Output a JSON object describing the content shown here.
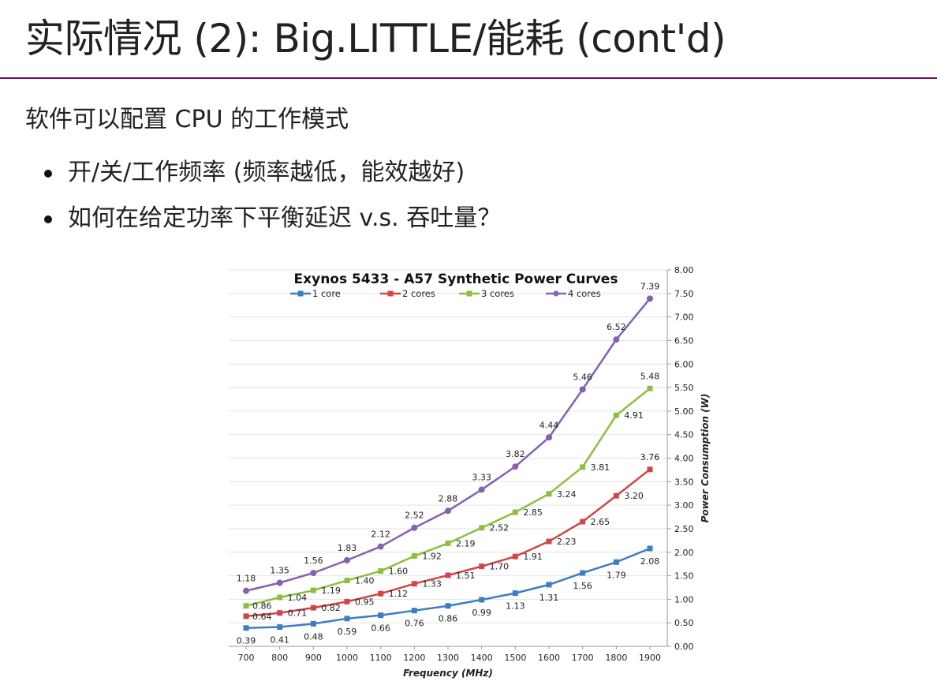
{
  "slide": {
    "title": "实际情况 (2): Big.LITTLE/能耗 (cont'd)",
    "lead": "软件可以配置 CPU 的工作模式",
    "bullets": [
      "开/关/工作频率 (频率越低，能效越好)",
      "如何在给定功率下平衡延迟 v.s. 吞吐量？"
    ]
  },
  "chart_data": {
    "type": "line",
    "title": "Exynos 5433 - A57 Synthetic Power Curves",
    "xlabel": "Frequency (MHz)",
    "ylabel": "Power Consumption (W)",
    "x": [
      700,
      800,
      900,
      1000,
      1100,
      1200,
      1300,
      1400,
      1500,
      1600,
      1700,
      1800,
      1900
    ],
    "ylim": [
      0,
      8
    ],
    "yticks": [
      "0.00",
      "0.50",
      "1.00",
      "1.50",
      "2.00",
      "2.50",
      "3.00",
      "3.50",
      "4.00",
      "4.50",
      "5.00",
      "5.50",
      "6.00",
      "6.50",
      "7.00",
      "7.50",
      "8.00"
    ],
    "y_axis_side": "right",
    "grid": true,
    "legend": "top",
    "series": [
      {
        "name": "1 core",
        "color": "#3c7dc3",
        "marker": "square",
        "values": [
          0.39,
          0.41,
          0.48,
          0.59,
          0.66,
          0.76,
          0.86,
          0.99,
          1.13,
          1.31,
          1.56,
          1.79,
          2.08
        ],
        "labels": [
          "0.39",
          "0.41",
          "0.48",
          "0.59",
          "0.66",
          "0.76",
          "0.86",
          "0.99",
          "1.13",
          "1.31",
          "1.56",
          "1.79",
          "2.08"
        ]
      },
      {
        "name": "2 cores",
        "color": "#d04545",
        "marker": "square",
        "values": [
          0.64,
          0.71,
          0.82,
          0.95,
          1.12,
          1.33,
          1.51,
          1.7,
          1.91,
          2.23,
          2.65,
          3.2,
          3.76
        ],
        "labels": [
          "0.64",
          "0.71",
          "0.82",
          "0.95",
          "1.12",
          "1.33",
          "1.51",
          "1.70",
          "1.91",
          "2.23",
          "2.65",
          "3.20",
          "3.76"
        ]
      },
      {
        "name": "3 cores",
        "color": "#8cbf3f",
        "marker": "square",
        "values": [
          0.86,
          1.04,
          1.19,
          1.4,
          1.6,
          1.92,
          2.19,
          2.52,
          2.85,
          3.24,
          3.81,
          4.91,
          5.48
        ],
        "labels": [
          "0.86",
          "1.04",
          "1.19",
          "1.40",
          "1.60",
          "1.92",
          "2.19",
          "2.52",
          "2.85",
          "3.24",
          "3.81",
          "4.91",
          "5.48"
        ]
      },
      {
        "name": "4 cores",
        "color": "#8760b0",
        "marker": "circle",
        "values": [
          1.18,
          1.35,
          1.56,
          1.83,
          2.12,
          2.52,
          2.88,
          3.33,
          3.82,
          4.44,
          5.46,
          6.52,
          7.39
        ],
        "labels": [
          "1.18",
          "1.35",
          "1.56",
          "1.83",
          "2.12",
          "2.52",
          "2.88",
          "3.33",
          "3.82",
          "4.44",
          "5.46",
          "6.52",
          "7.39"
        ]
      }
    ]
  }
}
